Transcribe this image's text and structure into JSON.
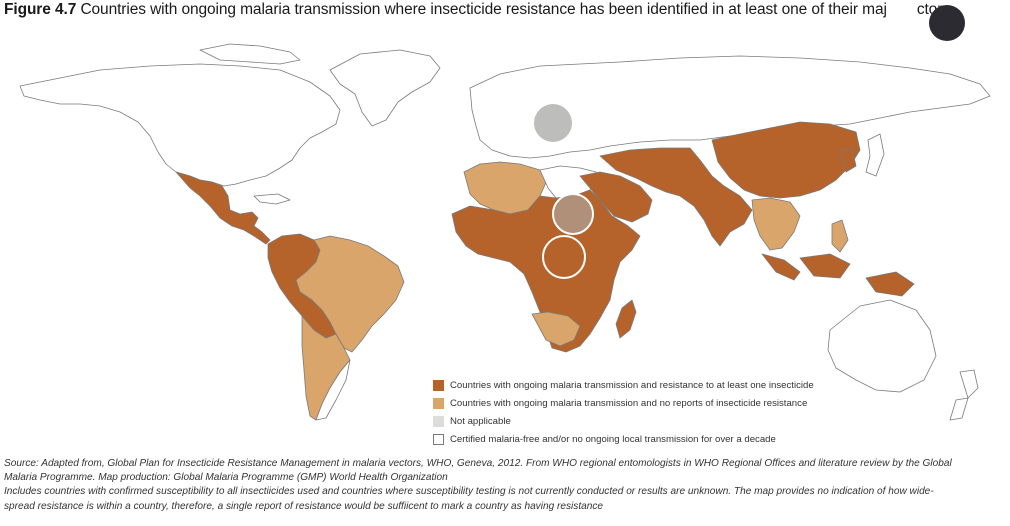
{
  "title": {
    "figure_label": "Figure 4.7",
    "text_before_cursor": "Countries with ongoing malaria transmission where insecticide resistance has been identified in at least one of their maj",
    "text_after_cursor": "ctors"
  },
  "colors": {
    "resistance": "#b5632a",
    "no_reports": "#d9a56b",
    "not_applicable": "#dcdcda",
    "malaria_free_fill": "#ffffff",
    "outline": "#7a7a7a",
    "border": "#ffffff",
    "ocean": "#ffffff",
    "cursor_dot": "#2b2b31",
    "overlay_gray": "#bdbdbb",
    "overlay_tan": "#b09078",
    "overlay_rust": "#b5632a"
  },
  "legend": {
    "items": [
      {
        "label": "Countries with ongoing malaria transmission and resistance to at least one insecticide",
        "color": "#b5632a"
      },
      {
        "label": "Countries with ongoing malaria transmission and no reports of insecticide resistance",
        "color": "#d9a56b"
      },
      {
        "label": "Not applicable",
        "color": "#dcdcda"
      },
      {
        "label": "Certified malaria-free and/or no ongoing local transmission for over a decade",
        "color": "#ffffff"
      }
    ]
  },
  "source": {
    "line1": "Source: Adapted from, Global Plan for Insecticide Resistance Management in malaria vectors, WHO, Geneva, 2012. From WHO regional entomologists in WHO Regional Offices and literature review by the Global",
    "line2": "Malaria Programme. Map production: Global Malaria Programme (GMP) World Health Organization",
    "line3": "Includes countries with confirmed susceptibility to all insectiicides used and countries where susceptibility testing is not currently conducted or results are unknown. The map provides no indication of how wide-",
    "line4": "spread resistance is within a country, therefore, a single report of resistance would be suffiicent to mark a country as having resistance"
  }
}
